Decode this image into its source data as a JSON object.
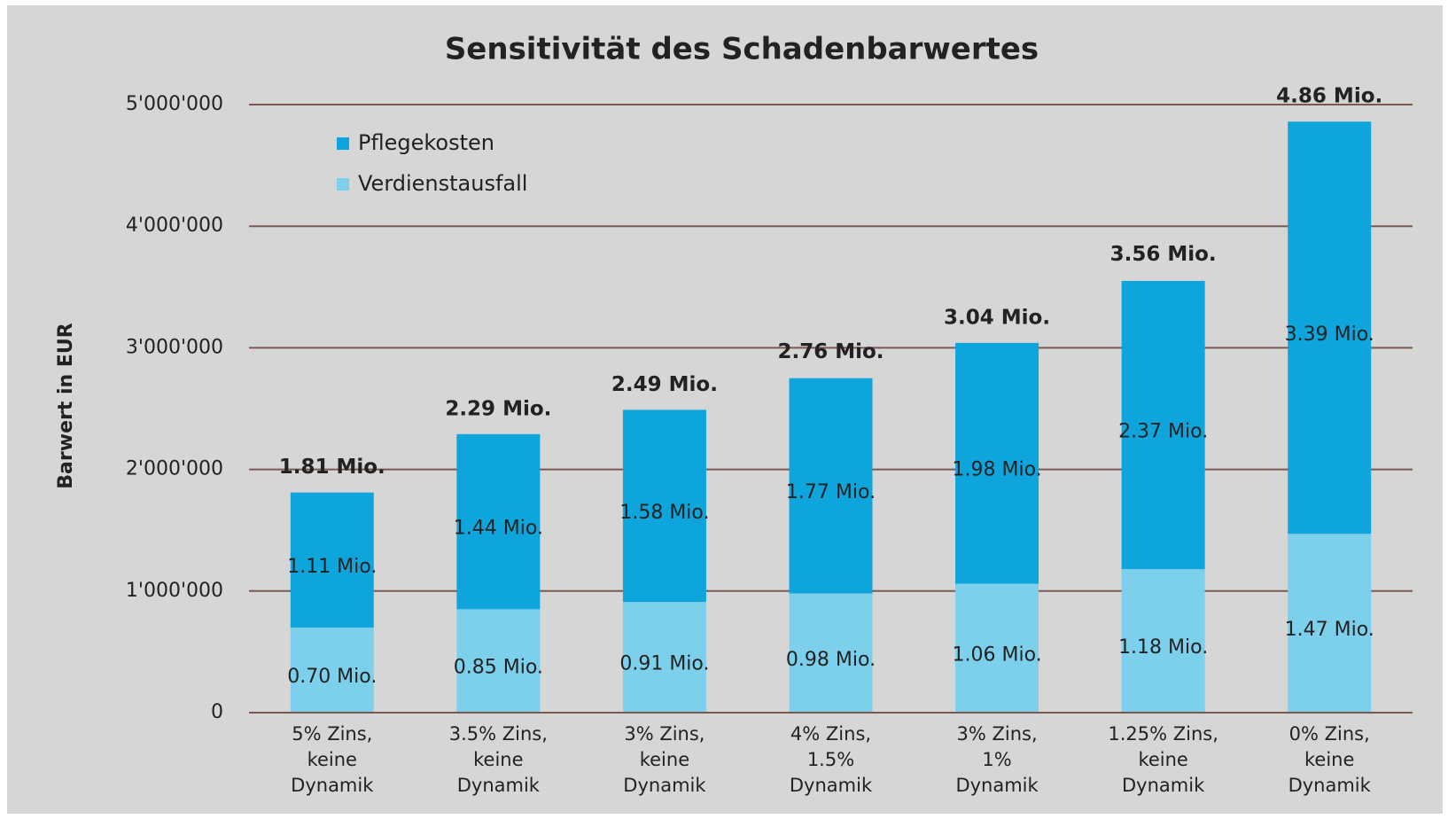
{
  "chart_data": {
    "type": "stacked_bar",
    "title": "Sensitivität des Schadenbarwertes",
    "y_label": "Barwert in EUR",
    "categories": [
      "5% Zins,\nkeine\nDynamik",
      "3.5% Zins,\nkeine\nDynamik",
      "3% Zins,\nkeine\nDynamik",
      "4% Zins,\n1.5%\nDynamik",
      "3% Zins,\n1%\nDynamik",
      "1.25% Zins,\nkeine\nDynamik",
      "0% Zins,\nkeine\nDynamik"
    ],
    "series": [
      {
        "name": "Verdienstausfall",
        "color": "#7dd0ec",
        "values": [
          700000,
          850000,
          910000,
          980000,
          1060000,
          1180000,
          1470000
        ],
        "value_labels": [
          "0.70 Mio.",
          "0.85 Mio.",
          "0.91 Mio.",
          "0.98 Mio.",
          "1.06 Mio.",
          "1.18 Mio.",
          "1.47 Mio."
        ]
      },
      {
        "name": "Pflegekosten",
        "color": "#0ea5dc",
        "values": [
          1110000,
          1440000,
          1580000,
          1770000,
          1980000,
          2370000,
          3390000
        ],
        "value_labels": [
          "1.11 Mio.",
          "1.44 Mio.",
          "1.58 Mio.",
          "1.77 Mio.",
          "1.98 Mio.",
          "2.37 Mio.",
          "3.39 Mio."
        ]
      }
    ],
    "totals": [
      1810000,
      2290000,
      2490000,
      2760000,
      3040000,
      3560000,
      4860000
    ],
    "total_labels": [
      "1.81 Mio.",
      "2.29 Mio.",
      "2.49 Mio.",
      "2.76 Mio.",
      "3.04 Mio.",
      "3.56 Mio.",
      "4.86 Mio."
    ],
    "ylim": [
      0,
      5000000
    ],
    "yticks": [
      0,
      {
        "value": 1000000,
        "label": "1'000'000"
      },
      {
        "value": 2000000,
        "label": "2'000'000"
      },
      {
        "value": 3000000,
        "label": "3'000'000"
      },
      {
        "value": 4000000,
        "label": "4'000'000"
      },
      {
        "value": 5000000,
        "label": "5'000'000"
      }
    ],
    "grid": true,
    "legend": "top-left"
  }
}
